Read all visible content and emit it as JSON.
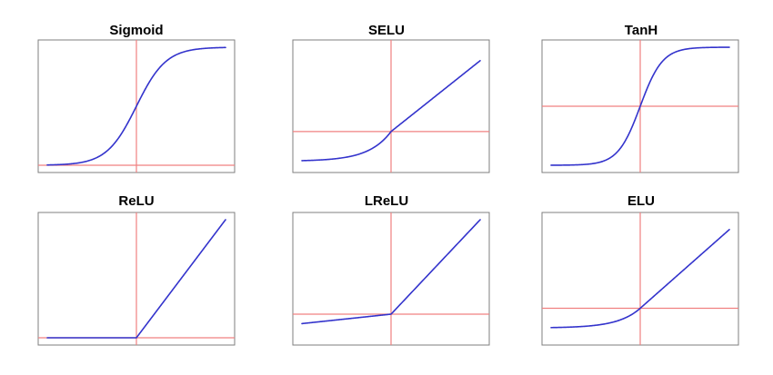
{
  "colors": {
    "curve": "#3333cc",
    "axes": "#f08080",
    "frame": "#7f7f7f",
    "title": "#000000"
  },
  "chart_data": [
    {
      "type": "line",
      "title": "Sigmoid",
      "function": "sigmoid",
      "xlim": [
        -6,
        6
      ],
      "ylim": [
        0,
        1
      ],
      "grid": false,
      "axes": {
        "vertical_at_x": 0,
        "horizontal_at_y": 0
      },
      "series": [
        {
          "x": [
            -6,
            -4,
            -2,
            -1,
            0,
            1,
            2,
            4,
            6
          ],
          "y": [
            0.002,
            0.018,
            0.119,
            0.269,
            0.5,
            0.731,
            0.881,
            0.982,
            0.998
          ]
        }
      ]
    },
    {
      "type": "line",
      "title": "SELU",
      "function": "selu",
      "xlim": [
        -4,
        4
      ],
      "ylim": [
        -2,
        5
      ],
      "grid": false,
      "axes": {
        "vertical_at_x": 0,
        "horizontal_at_y": 0
      },
      "series": [
        {
          "x": [
            -4,
            -3,
            -2,
            -1,
            0,
            1,
            2,
            3,
            4
          ],
          "y": [
            -1.726,
            -1.67,
            -1.52,
            -1.111,
            0,
            1.051,
            2.101,
            3.152,
            4.203
          ]
        }
      ]
    },
    {
      "type": "line",
      "title": "TanH",
      "function": "tanh",
      "xlim": [
        -4,
        4
      ],
      "ylim": [
        -1,
        1
      ],
      "grid": false,
      "axes": {
        "vertical_at_x": 0,
        "horizontal_at_y": 0
      },
      "series": [
        {
          "x": [
            -4,
            -2,
            -1,
            -0.5,
            0,
            0.5,
            1,
            2,
            4
          ],
          "y": [
            -0.999,
            -0.964,
            -0.762,
            -0.462,
            0,
            0.462,
            0.762,
            0.964,
            0.999
          ]
        }
      ]
    },
    {
      "type": "line",
      "title": "ReLU",
      "function": "relu",
      "xlim": [
        -4,
        4
      ],
      "ylim": [
        0,
        4
      ],
      "grid": false,
      "axes": {
        "vertical_at_x": 0,
        "horizontal_at_y": 0
      },
      "series": [
        {
          "x": [
            -4,
            0,
            4
          ],
          "y": [
            0,
            0,
            4
          ]
        }
      ]
    },
    {
      "type": "line",
      "title": "LReLU",
      "function": "leaky_relu",
      "xlim": [
        -4,
        4
      ],
      "ylim": [
        -1,
        4
      ],
      "grid": false,
      "axes": {
        "vertical_at_x": 0,
        "horizontal_at_y": 0
      },
      "series": [
        {
          "x": [
            -4,
            0,
            4
          ],
          "y": [
            -0.4,
            0,
            4
          ]
        }
      ]
    },
    {
      "type": "line",
      "title": "ELU",
      "function": "elu",
      "xlim": [
        -4,
        4
      ],
      "ylim": [
        -1.5,
        4.5
      ],
      "grid": false,
      "axes": {
        "vertical_at_x": 0,
        "horizontal_at_y": 0
      },
      "series": [
        {
          "x": [
            -4,
            -3,
            -2,
            -1,
            0,
            1,
            2,
            3,
            4
          ],
          "y": [
            -0.982,
            -0.95,
            -0.865,
            -0.632,
            0,
            1,
            2,
            3,
            4
          ]
        }
      ]
    }
  ]
}
